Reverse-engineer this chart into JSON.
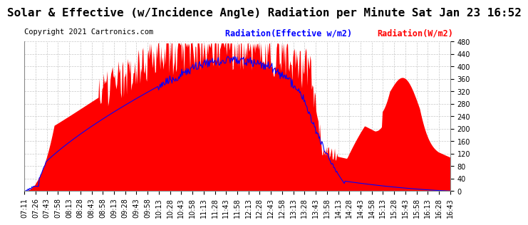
{
  "title": "Solar & Effective (w/Incidence Angle) Radiation per Minute Sat Jan 23 16:52",
  "copyright": "Copyright 2021 Cartronics.com",
  "legend_effective": "Radiation(Effective w/m2)",
  "legend_radiation": "Radiation(W/m2)",
  "ymin": 0.0,
  "ymax": 480.0,
  "yticks": [
    0.0,
    40.0,
    80.0,
    120.0,
    160.0,
    200.0,
    240.0,
    280.0,
    320.0,
    360.0,
    400.0,
    440.0,
    480.0
  ],
  "color_fill": "#FF0000",
  "color_effective": "#0000FF",
  "color_radiation": "#FF0000",
  "background_color": "#FFFFFF",
  "grid_color": "#C8C8C8",
  "title_fontsize": 11.5,
  "tick_fontsize": 7,
  "copyright_fontsize": 7.5
}
